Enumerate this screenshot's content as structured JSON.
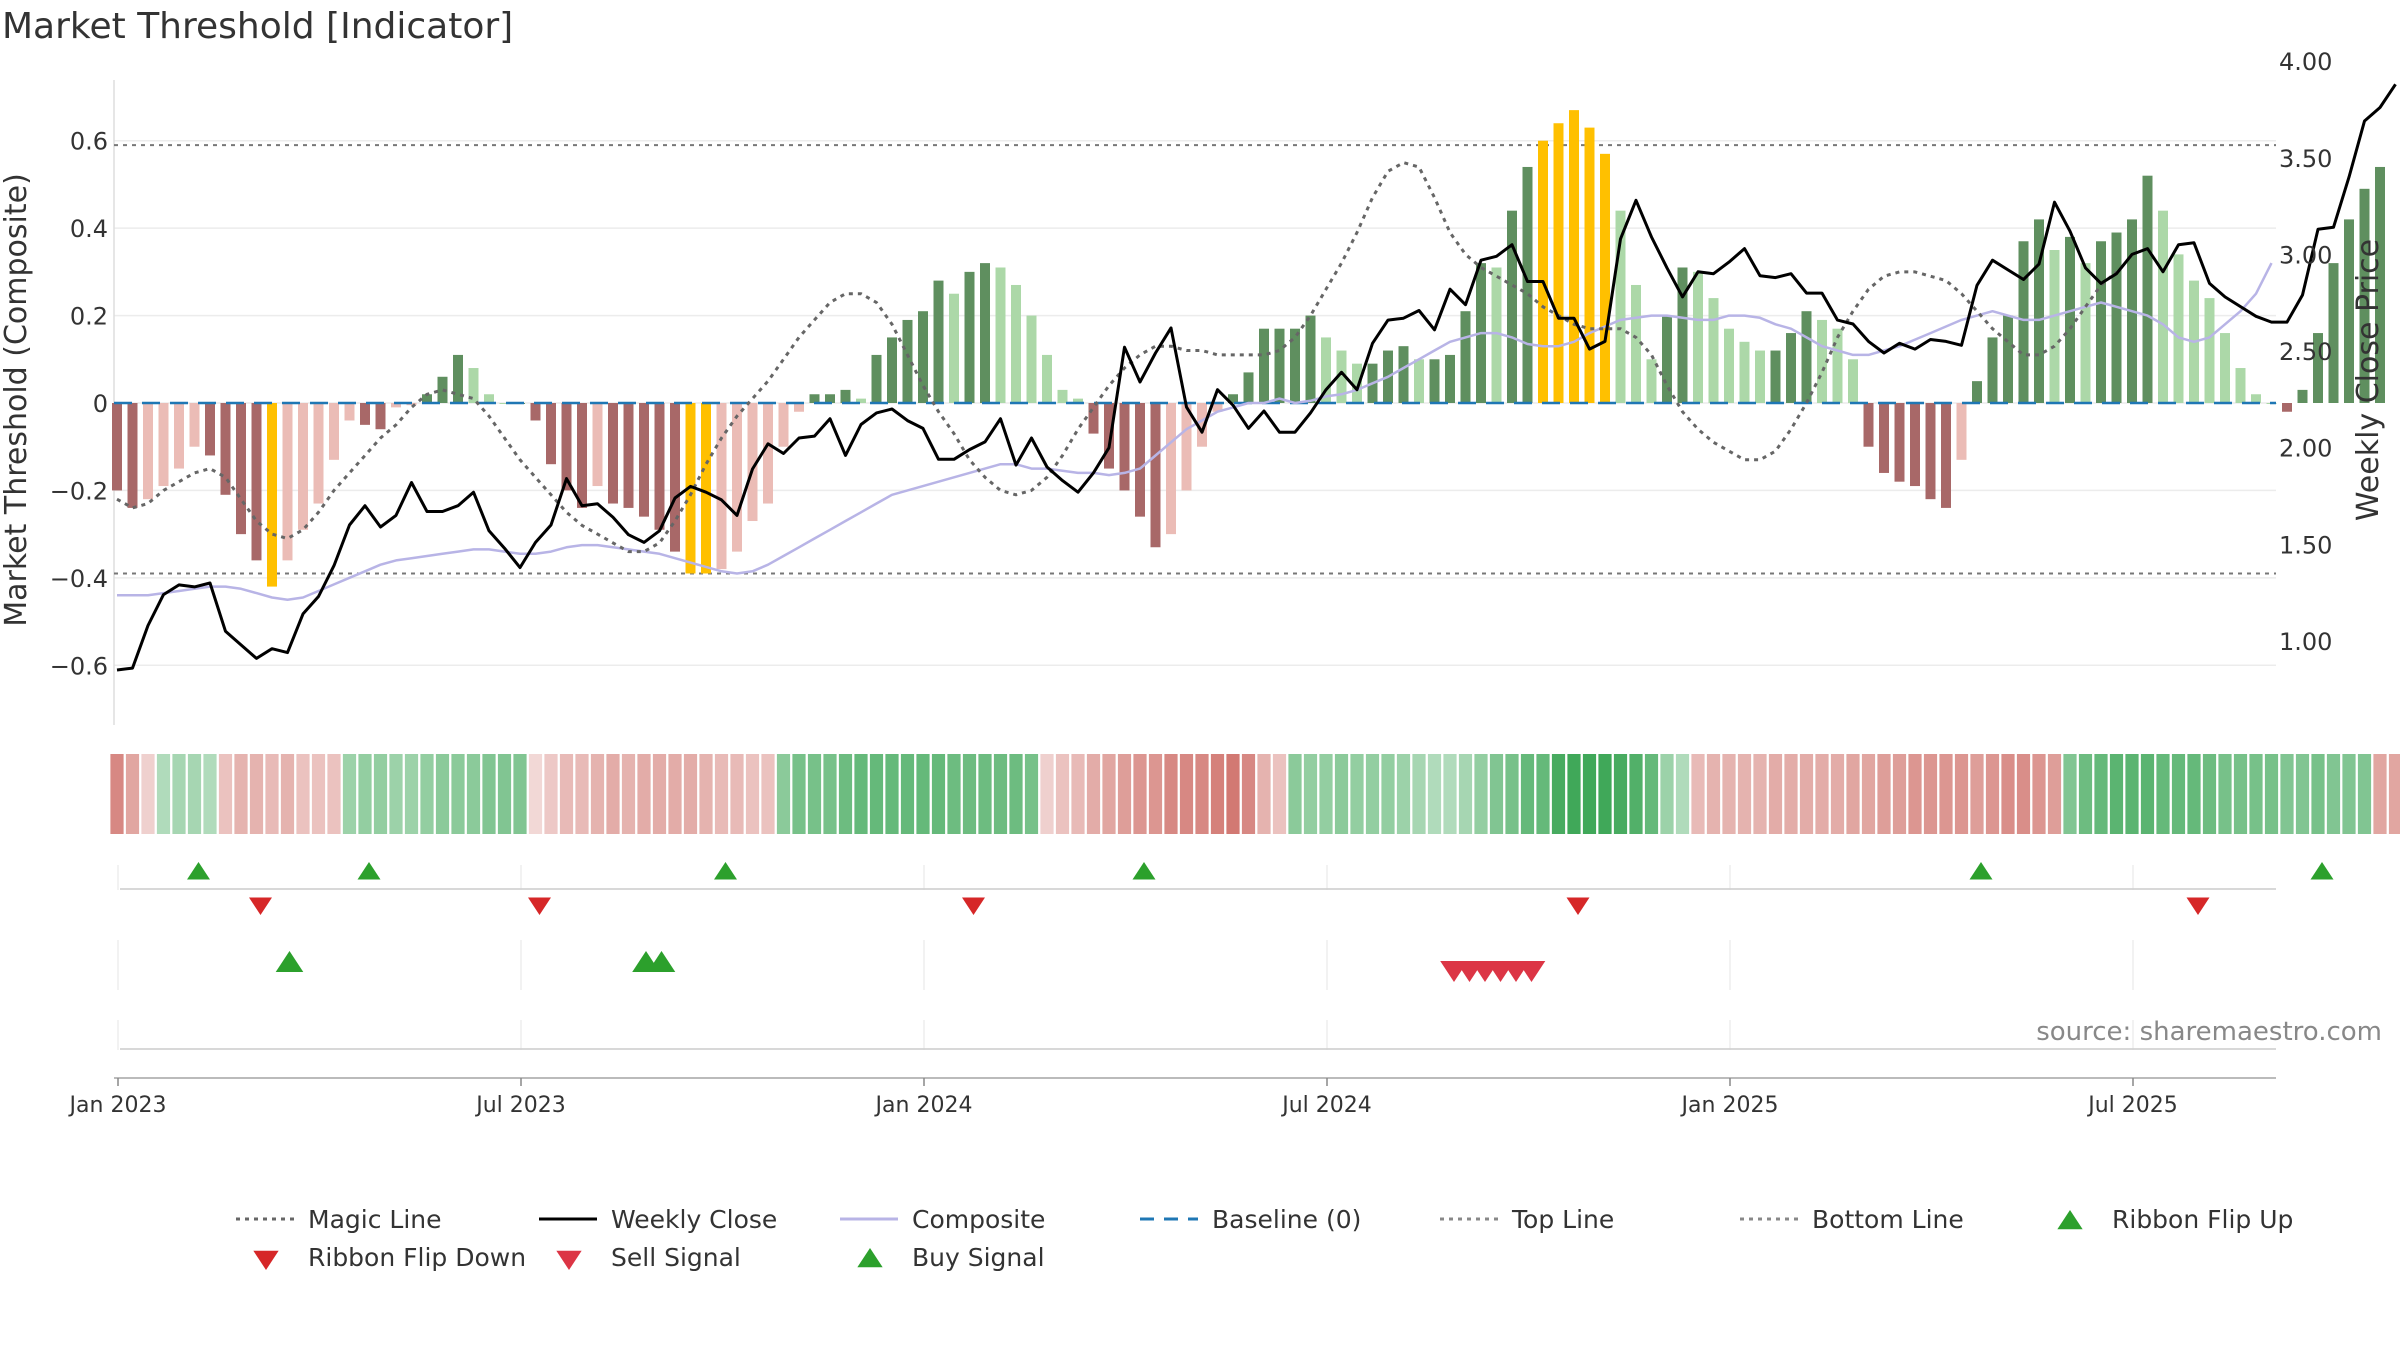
{
  "chart_data": {
    "type": "bar",
    "title": "Market Threshold [Indicator]",
    "ylabel": "Market Threshold (Composite)",
    "y2label": "Weekly Close Price",
    "source": "source: sharemaestro.com",
    "ylim": [
      -0.73,
      0.74
    ],
    "y2lim": [
      0.77,
      4.07
    ],
    "yticks": [
      {
        "value": 0.6,
        "label": "0.6"
      },
      {
        "value": 0.4,
        "label": "0.4"
      },
      {
        "value": 0.2,
        "label": "0.2"
      },
      {
        "value": 0,
        "label": "0"
      },
      {
        "value": -0.2,
        "label": "−0.2"
      },
      {
        "value": -0.4,
        "label": "−0.4"
      },
      {
        "value": -0.6,
        "label": "−0.6"
      }
    ],
    "y2ticks": [
      {
        "value": 4.0,
        "label": "4.00"
      },
      {
        "value": 3.5,
        "label": "3.50"
      },
      {
        "value": 3.0,
        "label": "3.00"
      },
      {
        "value": 2.5,
        "label": "2.50"
      },
      {
        "value": 2.0,
        "label": "2.00"
      },
      {
        "value": 1.5,
        "label": "1.50"
      },
      {
        "value": 1.0,
        "label": "1.00"
      }
    ],
    "xticks": [
      {
        "week": 2,
        "label": "Jan 2023"
      },
      {
        "week": 28,
        "label": "Jul 2023"
      },
      {
        "week": 54,
        "label": "Jan 2024"
      },
      {
        "week": 80,
        "label": "Jul 2024"
      },
      {
        "week": 106,
        "label": "Jan 2025"
      },
      {
        "week": 132,
        "label": "Jul 2025"
      }
    ],
    "top_line": 0.59,
    "bottom_line": -0.39,
    "baseline": 0,
    "weeks": 145,
    "composite_bars": [
      -0.2,
      -0.24,
      -0.22,
      -0.19,
      -0.15,
      -0.1,
      -0.12,
      -0.21,
      -0.3,
      -0.36,
      -0.42,
      -0.36,
      -0.29,
      -0.23,
      -0.13,
      -0.04,
      -0.05,
      -0.06,
      -0.01,
      -0.005,
      0.02,
      0.06,
      0.11,
      0.08,
      0.02,
      0.0,
      0.0,
      -0.04,
      -0.14,
      -0.2,
      -0.24,
      -0.19,
      -0.23,
      -0.24,
      -0.26,
      -0.29,
      -0.34,
      -0.39,
      -0.39,
      -0.38,
      -0.34,
      -0.27,
      -0.23,
      -0.1,
      -0.02,
      0.02,
      0.02,
      0.03,
      0.01,
      0.11,
      0.15,
      0.19,
      0.21,
      0.28,
      0.25,
      0.3,
      0.32,
      0.31,
      0.27,
      0.2,
      0.11,
      0.03,
      0.01,
      -0.07,
      -0.15,
      -0.2,
      -0.26,
      -0.33,
      -0.3,
      -0.2,
      -0.1,
      -0.02,
      0.02,
      0.07,
      0.17,
      0.17,
      0.17,
      0.2,
      0.15,
      0.12,
      0.09,
      0.09,
      0.12,
      0.13,
      0.1,
      0.1,
      0.11,
      0.21,
      0.32,
      0.31,
      0.44,
      0.54,
      0.6,
      0.64,
      0.67,
      0.63,
      0.57,
      0.44,
      0.27,
      0.1,
      0.2,
      0.31,
      0.3,
      0.24,
      0.17,
      0.14,
      0.12,
      0.12,
      0.16,
      0.21,
      0.19,
      0.17,
      0.1,
      -0.1,
      -0.16,
      -0.18,
      -0.19,
      -0.22,
      -0.24,
      -0.13,
      0.05,
      0.15,
      0.2,
      0.37,
      0.42,
      0.35,
      0.38,
      0.32,
      0.37,
      0.39,
      0.42,
      0.52,
      0.44,
      0.34,
      0.28,
      0.24,
      0.16,
      0.08,
      0.02,
      0.0,
      -0.02,
      0.03,
      0.16,
      0.32,
      0.42,
      0.49,
      0.54
    ],
    "weekly_close": [
      0.85,
      0.86,
      1.08,
      1.24,
      1.29,
      1.28,
      1.3,
      1.05,
      0.98,
      0.91,
      0.96,
      0.94,
      1.14,
      1.23,
      1.39,
      1.6,
      1.7,
      1.59,
      1.65,
      1.82,
      1.67,
      1.67,
      1.7,
      1.77,
      1.57,
      1.48,
      1.38,
      1.51,
      1.6,
      1.84,
      1.7,
      1.71,
      1.64,
      1.55,
      1.51,
      1.57,
      1.74,
      1.8,
      1.77,
      1.73,
      1.65,
      1.89,
      2.02,
      1.97,
      2.05,
      2.06,
      2.15,
      1.96,
      2.12,
      2.18,
      2.2,
      2.14,
      2.1,
      1.94,
      1.94,
      1.99,
      2.03,
      2.15,
      1.91,
      2.05,
      1.9,
      1.83,
      1.77,
      1.87,
      2.0,
      2.52,
      2.34,
      2.49,
      2.62,
      2.21,
      2.08,
      2.3,
      2.22,
      2.1,
      2.19,
      2.08,
      2.08,
      2.18,
      2.3,
      2.39,
      2.3,
      2.54,
      2.66,
      2.67,
      2.71,
      2.61,
      2.82,
      2.74,
      2.97,
      2.99,
      3.05,
      2.86,
      2.86,
      2.67,
      2.67,
      2.51,
      2.55,
      3.08,
      3.28,
      3.09,
      2.93,
      2.78,
      2.91,
      2.9,
      2.96,
      3.03,
      2.89,
      2.88,
      2.9,
      2.8,
      2.8,
      2.66,
      2.64,
      2.55,
      2.49,
      2.54,
      2.51,
      2.56,
      2.55,
      2.53,
      2.84,
      2.97,
      2.92,
      2.87,
      2.95,
      3.27,
      3.12,
      2.93,
      2.85,
      2.9,
      3.0,
      3.03,
      2.91,
      3.05,
      3.06,
      2.85,
      2.78,
      2.73,
      2.68,
      2.65,
      2.65,
      2.79,
      3.13,
      3.14,
      3.4,
      3.69,
      3.76,
      3.88
    ],
    "composite_line": [
      -0.44,
      -0.44,
      -0.44,
      -0.435,
      -0.43,
      -0.425,
      -0.42,
      -0.42,
      -0.425,
      -0.435,
      -0.445,
      -0.45,
      -0.445,
      -0.43,
      -0.415,
      -0.4,
      -0.385,
      -0.37,
      -0.36,
      -0.355,
      -0.35,
      -0.345,
      -0.34,
      -0.335,
      -0.335,
      -0.34,
      -0.345,
      -0.345,
      -0.34,
      -0.33,
      -0.325,
      -0.325,
      -0.33,
      -0.335,
      -0.34,
      -0.345,
      -0.355,
      -0.365,
      -0.375,
      -0.385,
      -0.39,
      -0.385,
      -0.37,
      -0.35,
      -0.33,
      -0.31,
      -0.29,
      -0.27,
      -0.25,
      -0.23,
      -0.21,
      -0.2,
      -0.19,
      -0.18,
      -0.17,
      -0.16,
      -0.15,
      -0.14,
      -0.14,
      -0.15,
      -0.15,
      -0.155,
      -0.16,
      -0.16,
      -0.165,
      -0.16,
      -0.15,
      -0.12,
      -0.09,
      -0.06,
      -0.04,
      -0.02,
      -0.01,
      0.0,
      0.0,
      0.01,
      0.0,
      0.005,
      0.015,
      0.02,
      0.03,
      0.045,
      0.06,
      0.08,
      0.1,
      0.12,
      0.14,
      0.15,
      0.16,
      0.16,
      0.15,
      0.135,
      0.13,
      0.13,
      0.14,
      0.16,
      0.175,
      0.19,
      0.195,
      0.2,
      0.2,
      0.195,
      0.19,
      0.19,
      0.2,
      0.2,
      0.195,
      0.18,
      0.17,
      0.15,
      0.13,
      0.12,
      0.11,
      0.11,
      0.12,
      0.13,
      0.145,
      0.16,
      0.175,
      0.19,
      0.2,
      0.21,
      0.2,
      0.19,
      0.19,
      0.2,
      0.21,
      0.22,
      0.23,
      0.22,
      0.21,
      0.2,
      0.18,
      0.15,
      0.14,
      0.15,
      0.18,
      0.21,
      0.25,
      0.32
    ],
    "magic_line": [
      -0.22,
      -0.24,
      -0.23,
      -0.2,
      -0.18,
      -0.16,
      -0.15,
      -0.17,
      -0.22,
      -0.27,
      -0.3,
      -0.31,
      -0.29,
      -0.25,
      -0.2,
      -0.16,
      -0.12,
      -0.08,
      -0.05,
      -0.01,
      0.02,
      0.03,
      0.02,
      0.01,
      -0.03,
      -0.08,
      -0.13,
      -0.17,
      -0.21,
      -0.25,
      -0.28,
      -0.3,
      -0.32,
      -0.34,
      -0.34,
      -0.32,
      -0.27,
      -0.21,
      -0.14,
      -0.08,
      -0.03,
      0.01,
      0.05,
      0.1,
      0.15,
      0.19,
      0.23,
      0.25,
      0.25,
      0.23,
      0.18,
      0.11,
      0.04,
      -0.02,
      -0.07,
      -0.13,
      -0.17,
      -0.2,
      -0.21,
      -0.2,
      -0.17,
      -0.12,
      -0.06,
      -0.01,
      0.04,
      0.08,
      0.11,
      0.13,
      0.13,
      0.12,
      0.12,
      0.11,
      0.11,
      0.11,
      0.11,
      0.12,
      0.15,
      0.2,
      0.26,
      0.32,
      0.39,
      0.47,
      0.53,
      0.55,
      0.54,
      0.47,
      0.39,
      0.34,
      0.31,
      0.29,
      0.27,
      0.25,
      0.22,
      0.2,
      0.18,
      0.17,
      0.17,
      0.17,
      0.15,
      0.11,
      0.04,
      -0.02,
      -0.06,
      -0.09,
      -0.11,
      -0.13,
      -0.13,
      -0.11,
      -0.06,
      0.0,
      0.07,
      0.15,
      0.21,
      0.26,
      0.29,
      0.3,
      0.3,
      0.29,
      0.28,
      0.25,
      0.21,
      0.17,
      0.14,
      0.11,
      0.11,
      0.13,
      0.17,
      0.22,
      0.27,
      0.3
    ],
    "ribbon": [
      -0.7,
      -0.5,
      -0.2,
      0.3,
      0.35,
      0.35,
      0.3,
      -0.3,
      -0.4,
      -0.4,
      -0.35,
      -0.4,
      -0.3,
      -0.3,
      -0.3,
      0.4,
      0.45,
      0.45,
      0.4,
      0.4,
      0.45,
      0.5,
      0.5,
      0.5,
      0.55,
      0.55,
      0.55,
      -0.15,
      -0.25,
      -0.35,
      -0.35,
      -0.4,
      -0.45,
      -0.4,
      -0.45,
      -0.45,
      -0.45,
      -0.45,
      -0.4,
      -0.35,
      -0.35,
      -0.3,
      -0.3,
      0.5,
      0.6,
      0.6,
      0.6,
      0.65,
      0.7,
      0.7,
      0.7,
      0.7,
      0.7,
      0.7,
      0.65,
      0.65,
      0.65,
      0.65,
      0.65,
      0.6,
      -0.2,
      -0.3,
      -0.35,
      -0.45,
      -0.5,
      -0.55,
      -0.6,
      -0.6,
      -0.7,
      -0.7,
      -0.7,
      -0.75,
      -0.8,
      -0.7,
      -0.4,
      -0.3,
      0.5,
      0.45,
      0.45,
      0.5,
      0.45,
      0.45,
      0.45,
      0.4,
      0.35,
      0.3,
      0.3,
      0.35,
      0.45,
      0.55,
      0.6,
      0.7,
      0.7,
      0.85,
      0.9,
      0.9,
      0.9,
      0.85,
      0.8,
      0.7,
      0.4,
      0.3,
      -0.35,
      -0.4,
      -0.4,
      -0.4,
      -0.4,
      -0.45,
      -0.45,
      -0.45,
      -0.45,
      -0.45,
      -0.5,
      -0.5,
      -0.55,
      -0.55,
      -0.6,
      -0.6,
      -0.6,
      -0.6,
      -0.55,
      -0.6,
      -0.65,
      -0.65,
      -0.6,
      -0.55,
      0.55,
      0.65,
      0.7,
      0.75,
      0.75,
      0.75,
      0.7,
      0.7,
      0.7,
      0.65,
      0.6,
      0.6,
      0.6,
      0.6,
      0.55,
      0.55,
      0.6,
      0.55,
      0.55,
      0.55,
      -0.5,
      -0.5,
      -0.5,
      -0.45,
      -0.45,
      -0.4,
      -0.45,
      -0.4,
      -0.35,
      0.55,
      0.5,
      0.5
    ],
    "ribbon_flip_up": [
      5,
      16,
      39,
      66,
      120,
      142
    ],
    "ribbon_flip_down": [
      9,
      27,
      55,
      94,
      134
    ],
    "buy_signal": [
      11,
      34,
      35
    ],
    "sell_signal": [
      86,
      87,
      88,
      89,
      90,
      91
    ],
    "legend": [
      {
        "label": "Magic Line",
        "style": "dotted",
        "color": "#666666"
      },
      {
        "label": "Weekly Close",
        "style": "solid",
        "color": "#000000"
      },
      {
        "label": "Composite",
        "style": "solid",
        "color": "#b8b4e6"
      },
      {
        "label": "Baseline (0)",
        "style": "dashed",
        "color": "#1f77b4"
      },
      {
        "label": "Top Line",
        "style": "dotted",
        "color": "#888888"
      },
      {
        "label": "Bottom Line",
        "style": "dotted",
        "color": "#888888"
      },
      {
        "label": "Ribbon Flip Up",
        "style": "triangle-up",
        "color": "#2ca02c"
      },
      {
        "label": "Ribbon Flip Down",
        "style": "triangle-down",
        "color": "#d62728"
      },
      {
        "label": "Sell Signal",
        "style": "triangle-down",
        "color": "#dc3545"
      },
      {
        "label": "Buy Signal",
        "style": "triangle-up",
        "color": "#2ca02c"
      }
    ],
    "colors": {
      "bar_pos_strong": "#5f8f5f",
      "bar_pos_weak": "#acd8a8",
      "bar_neg_strong": "#a86868",
      "bar_neg_weak": "#ebbcb6",
      "bar_extreme": "#ffc000",
      "ribbon_pos": "#3aa554",
      "ribbon_neg": "#cc6760",
      "flip_up": "#2ca02c",
      "flip_down": "#d62728",
      "sell": "#dc3545",
      "buy": "#2ca02c"
    }
  }
}
